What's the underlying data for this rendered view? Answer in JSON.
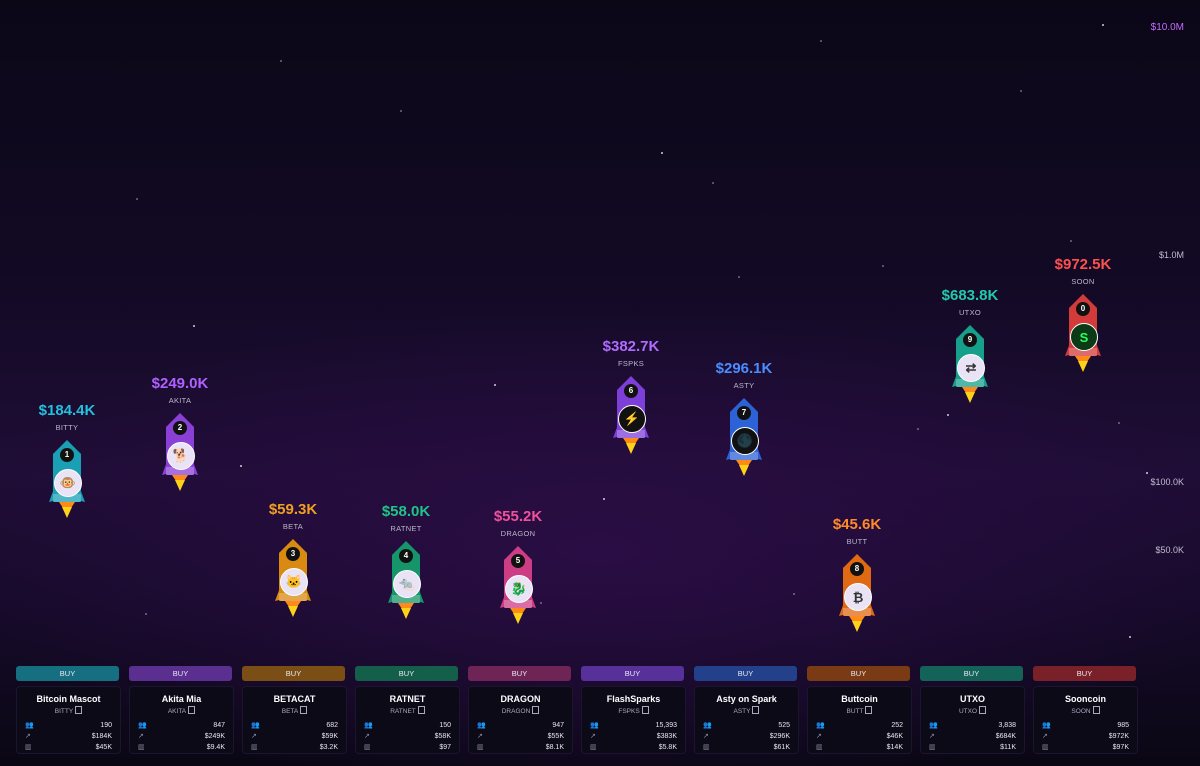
{
  "axis": {
    "top": "$10.0M",
    "m1": "$1.0M",
    "k100": "$100.0K",
    "k50": "$50.0K"
  },
  "rockets": [
    {
      "rank": "1",
      "mcap": "$184.4K",
      "ticker": "BITTY",
      "color": "#1a9fb5",
      "textColor": "#22c1de",
      "logo": "🐵"
    },
    {
      "rank": "2",
      "mcap": "$249.0K",
      "ticker": "AKITA",
      "color": "#8a3fd6",
      "textColor": "#b060ff",
      "logo": "🐕"
    },
    {
      "rank": "3",
      "mcap": "$59.3K",
      "ticker": "BETA",
      "color": "#d98a10",
      "textColor": "#f0a020",
      "logo": "🐱"
    },
    {
      "rank": "4",
      "mcap": "$58.0K",
      "ticker": "RATNET",
      "color": "#16956a",
      "textColor": "#1fc487",
      "logo": "🐀"
    },
    {
      "rank": "5",
      "mcap": "$55.2K",
      "ticker": "DRAGON",
      "color": "#cc3d86",
      "textColor": "#f0509c",
      "logo": "🐉"
    },
    {
      "rank": "6",
      "mcap": "$382.7K",
      "ticker": "FSPKS",
      "color": "#7d3fd8",
      "textColor": "#b06bff",
      "logo": "⚡"
    },
    {
      "rank": "7",
      "mcap": "$296.1K",
      "ticker": "ASTY",
      "color": "#2d62d6",
      "textColor": "#4a8dff",
      "logo": "🌑"
    },
    {
      "rank": "8",
      "mcap": "$45.6K",
      "ticker": "BUTT",
      "color": "#e06a14",
      "textColor": "#ff8a2a",
      "logo": "₿"
    },
    {
      "rank": "9",
      "mcap": "$683.8K",
      "ticker": "UTXO",
      "color": "#16a08c",
      "textColor": "#22c9ad",
      "logo": "⇄"
    },
    {
      "rank": "0",
      "mcap": "$972.5K",
      "ticker": "SOON",
      "color": "#d33a3a",
      "textColor": "#ff4f4f",
      "logo": "S"
    }
  ],
  "cards": [
    {
      "buy": "BUY",
      "buyColor": "#156f80",
      "name": "Bitcoin Mascot",
      "ticker": "BITTY",
      "holders": "190",
      "mcap": "$184K",
      "vol": "$45K"
    },
    {
      "buy": "BUY",
      "buyColor": "#5a2f8f",
      "name": "Akita Mia",
      "ticker": "AKITA",
      "holders": "847",
      "mcap": "$249K",
      "vol": "$9.4K"
    },
    {
      "buy": "BUY",
      "buyColor": "#7a4e14",
      "name": "BETACAT",
      "ticker": "BETA",
      "holders": "682",
      "mcap": "$59K",
      "vol": "$3.2K"
    },
    {
      "buy": "BUY",
      "buyColor": "#145f4a",
      "name": "RATNET",
      "ticker": "RATNET",
      "holders": "150",
      "mcap": "$58K",
      "vol": "$97"
    },
    {
      "buy": "BUY",
      "buyColor": "#6e2455",
      "name": "DRAGON",
      "ticker": "DRAGON",
      "holders": "947",
      "mcap": "$55K",
      "vol": "$8.1K"
    },
    {
      "buy": "BUY",
      "buyColor": "#57309a",
      "name": "FlashSparks",
      "ticker": "FSPKS",
      "holders": "15,393",
      "mcap": "$383K",
      "vol": "$5.8K"
    },
    {
      "buy": "BUY",
      "buyColor": "#22418a",
      "name": "Asty on Spark",
      "ticker": "ASTY",
      "holders": "525",
      "mcap": "$296K",
      "vol": "$61K"
    },
    {
      "buy": "BUY",
      "buyColor": "#7a3a14",
      "name": "Buttcoin",
      "ticker": "BUTT",
      "holders": "252",
      "mcap": "$46K",
      "vol": "$14K"
    },
    {
      "buy": "BUY",
      "buyColor": "#136358",
      "name": "UTXO",
      "ticker": "UTXO",
      "holders": "3,838",
      "mcap": "$684K",
      "vol": "$11K"
    },
    {
      "buy": "BUY",
      "buyColor": "#7a2028",
      "name": "Sooncoin",
      "ticker": "SOON",
      "holders": "985",
      "mcap": "$972K",
      "vol": "$97K"
    }
  ]
}
